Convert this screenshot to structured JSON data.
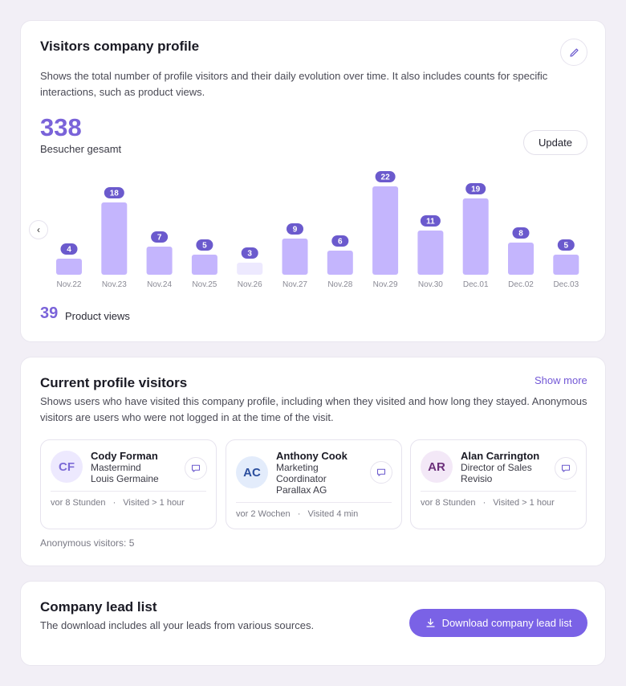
{
  "profile": {
    "title": "Visitors company profile",
    "description": "Shows the total number of profile visitors and their daily evolution over time. It also includes counts for specific interactions, such as product views.",
    "total_visitors": "338",
    "total_label": "Besucher gesamt",
    "update_label": "Update",
    "prev_icon": "‹",
    "product_views": "39",
    "product_views_label": "Product views"
  },
  "chart_data": {
    "type": "bar",
    "categories": [
      "Nov.22",
      "Nov.23",
      "Nov.24",
      "Nov.25",
      "Nov.26",
      "Nov.27",
      "Nov.28",
      "Nov.29",
      "Nov.30",
      "Dec.01",
      "Dec.02",
      "Dec.03"
    ],
    "values": [
      4,
      18,
      7,
      5,
      3,
      9,
      6,
      22,
      11,
      19,
      8,
      5
    ],
    "highlighted_low": [
      "Nov.26"
    ],
    "title": "",
    "xlabel": "",
    "ylabel": "",
    "ylim": [
      0,
      22
    ],
    "grid": false,
    "colors": {
      "bar": "#c4b5fd",
      "bar_muted": "#ede9fe",
      "label_bg": "#6b5acd",
      "label_text": "#ffffff",
      "tick": "#8a8a95"
    }
  },
  "visitors": {
    "title": "Current profile visitors",
    "show_more": "Show more",
    "description": "Shows users who have visited this company profile, including when they visited and how long they stayed. Anonymous visitors are users who were not logged in at the time of the visit.",
    "cards": [
      {
        "initials": "CF",
        "name": "Cody Forman",
        "role": "Mastermind",
        "company": "Louis Germaine",
        "when": "vor 8 Stunden",
        "duration": "Visited > 1 hour",
        "avatar_bg": "#ede9fe",
        "avatar_fg": "#7c6ad6"
      },
      {
        "initials": "AC",
        "name": "Anthony Cook",
        "role": "Marketing Coordinator",
        "company": "Parallax AG",
        "when": "vor 2 Wochen",
        "duration": "Visited 4 min",
        "avatar_bg": "#e3ecfb",
        "avatar_fg": "#2c4f9e"
      },
      {
        "initials": "AR",
        "name": "Alan Carrington",
        "role": "Director of Sales",
        "company": "Revisio",
        "when": "vor 8 Stunden",
        "duration": "Visited > 1 hour",
        "avatar_bg": "#f3e8f7",
        "avatar_fg": "#6b2f7a"
      }
    ],
    "separator": "·",
    "anonymous": "Anonymous visitors: 5"
  },
  "leads": {
    "title": "Company lead list",
    "description": "The download includes all your leads from various sources.",
    "download_label": "Download company lead list"
  },
  "icons": {
    "edit": "pencil-icon",
    "prev": "chevron-left-icon",
    "message": "message-icon",
    "download": "download-icon"
  },
  "colors": {
    "accent": "#7a62e6",
    "accent_text": "#7a63d9"
  }
}
